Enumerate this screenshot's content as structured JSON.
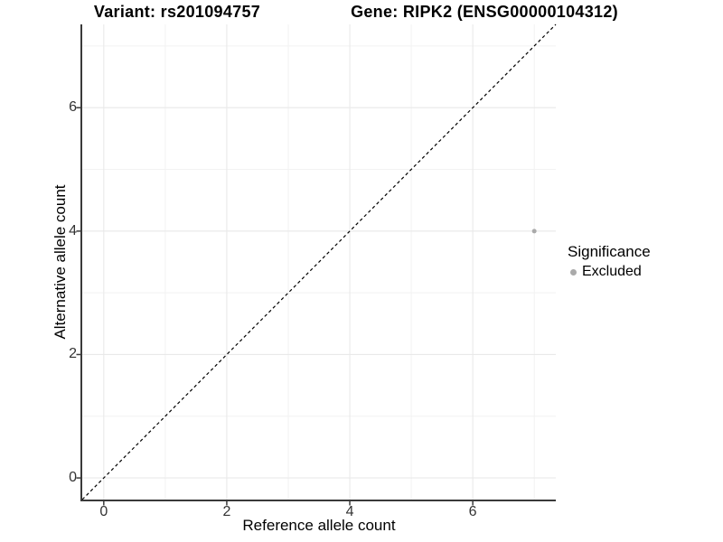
{
  "chart_data": {
    "type": "scatter",
    "titles": {
      "left": "Variant: rs201094757",
      "right": "Gene: RIPK2 (ENSG00000104312)"
    },
    "xlabel": "Reference allele count",
    "ylabel": "Alternative allele count",
    "xlim": [
      -0.35,
      7.35
    ],
    "ylim": [
      -0.35,
      7.35
    ],
    "xticks": [
      0,
      2,
      4,
      6
    ],
    "yticks": [
      0,
      2,
      4,
      6
    ],
    "x_minor_gridlines": [
      1,
      3,
      5,
      7
    ],
    "y_minor_gridlines": [
      1,
      3,
      5,
      7
    ],
    "grid": "major and minor gridlines on white panel",
    "series": [
      {
        "name": "Excluded",
        "color": "#aaaaaa",
        "marker": "circle",
        "points": [
          {
            "x": 7,
            "y": 4
          }
        ]
      }
    ],
    "identity_line": {
      "style": "dashed",
      "color": "#000000",
      "from": [
        -0.35,
        -0.35
      ],
      "to": [
        7.35,
        7.35
      ]
    },
    "legend": {
      "title": "Significance",
      "position": "right",
      "entries": [
        {
          "label": "Excluded",
          "color": "#aaaaaa"
        }
      ]
    }
  },
  "colors": {
    "background": "#ffffff",
    "grid_major": "#e9e9e9",
    "grid_minor": "#f2f2f2",
    "axis": "#3a3a3a",
    "tick_label": "#333333",
    "title_text": "#000000"
  }
}
